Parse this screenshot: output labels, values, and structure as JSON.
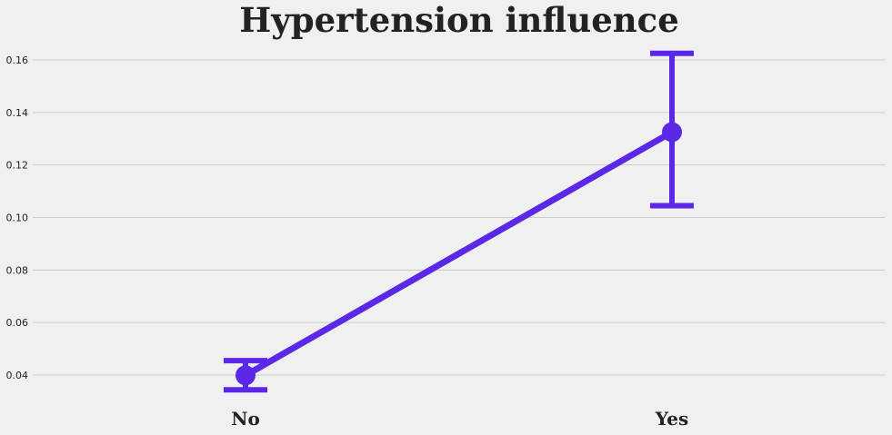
{
  "chart_data": {
    "type": "line",
    "title": "Hypertension influence",
    "xlabel": "",
    "ylabel": "",
    "categories": [
      "No",
      "Yes"
    ],
    "series": [
      {
        "values": [
          0.0399,
          0.1325
        ],
        "ci_low": [
          0.0344,
          0.1045
        ],
        "ci_high": [
          0.0455,
          0.1625
        ],
        "color": "#5b28e8"
      }
    ],
    "ylim": [
      0.03,
      0.167
    ],
    "yticks": [
      0.04,
      0.06,
      0.08,
      0.1,
      0.12,
      0.14,
      0.16
    ],
    "ytick_labels": [
      "0.04",
      "0.06",
      "0.08",
      "0.10",
      "0.12",
      "0.14",
      "0.16"
    ],
    "grid": true,
    "grid_axis": "y",
    "background": "#f0f0f0",
    "grid_color": "#cbcbcb"
  }
}
